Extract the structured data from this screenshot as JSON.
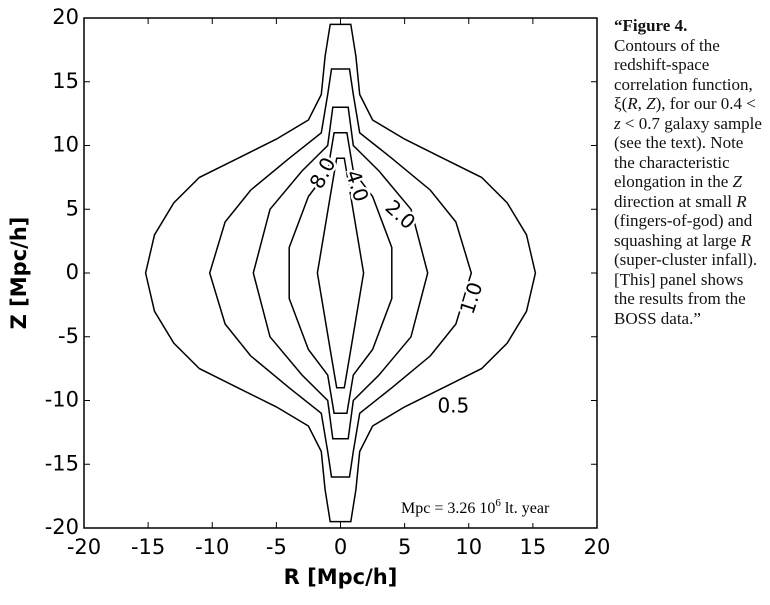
{
  "chart_data": {
    "type": "contour",
    "xlabel": "R  [Mpc/h]",
    "ylabel": "Z  [Mpc/h]",
    "xlim": [
      -20,
      20
    ],
    "ylim": [
      -20,
      20
    ],
    "xticks": [
      -20,
      -15,
      -10,
      -5,
      0,
      5,
      10,
      15,
      20
    ],
    "yticks": [
      -20,
      -15,
      -10,
      -5,
      0,
      5,
      10,
      15,
      20
    ],
    "color": "#000000",
    "contours": [
      {
        "level": {
          "value": 0.5,
          "label": "0.5"
        },
        "x": [
          0.8,
          1.2,
          1.5,
          2.5,
          5,
          8,
          11,
          13,
          14.5,
          15.2,
          14.5,
          13,
          11,
          8,
          5,
          2.5,
          1.5,
          1.2,
          0.8,
          -0.8,
          -1.2,
          -1.5,
          -2.5,
          -5,
          -8,
          -11,
          -13,
          -14.5,
          -15.2,
          -14.5,
          -13,
          -11,
          -8,
          -5,
          -2.5,
          -1.5,
          -1.2,
          -0.8
        ],
        "y": [
          19.5,
          17,
          14,
          12,
          10.5,
          9,
          7.5,
          5.5,
          3,
          0,
          -3,
          -5.5,
          -7.5,
          -9,
          -10.5,
          -12,
          -14,
          -17,
          -19.5,
          -19.5,
          -17,
          -14,
          -12,
          -10.5,
          -9,
          -7.5,
          -5.5,
          -3,
          0,
          3,
          5.5,
          7.5,
          9,
          10.5,
          12,
          14,
          17,
          19.5
        ]
      },
      {
        "level": {
          "value": 1,
          "label": "1.0"
        },
        "x": [
          0.7,
          1,
          1.5,
          4,
          7,
          9,
          10.2,
          9,
          7,
          4,
          1.5,
          1,
          0.7,
          -0.7,
          -1,
          -1.5,
          -4,
          -7,
          -9,
          -10.2,
          -9,
          -7,
          -4,
          -1.5,
          -1,
          -0.7
        ],
        "y": [
          16,
          14,
          11,
          9,
          6.5,
          4,
          0,
          -4,
          -6.5,
          -9,
          -11,
          -14,
          -16,
          -16,
          -14,
          -11,
          -9,
          -6.5,
          -4,
          0,
          4,
          6.5,
          9,
          11,
          14,
          16
        ]
      },
      {
        "level": {
          "value": 2,
          "label": "2.0"
        },
        "x": [
          0.6,
          1,
          3,
          5.5,
          6.8,
          5.5,
          3,
          1,
          0.6,
          -0.6,
          -1,
          -3,
          -5.5,
          -6.8,
          -5.5,
          -3,
          -1,
          -0.6
        ],
        "y": [
          13,
          10,
          8,
          5,
          0,
          -5,
          -8,
          -10,
          -13,
          -13,
          -10,
          -8,
          -5,
          0,
          5,
          8,
          10,
          13
        ]
      },
      {
        "level": {
          "value": 4,
          "label": "4.0"
        },
        "x": [
          0.5,
          1,
          2.5,
          4,
          4,
          2.5,
          1,
          0.5,
          -0.5,
          -1,
          -2.5,
          -4,
          -4,
          -2.5,
          -1,
          -0.5
        ],
        "y": [
          11,
          8,
          6,
          2,
          -2,
          -6,
          -8,
          -11,
          -11,
          -8,
          -6,
          -2,
          2,
          6,
          8,
          11
        ]
      },
      {
        "level": {
          "value": 8,
          "label": "8.0"
        },
        "x": [
          0.3,
          0.8,
          1.8,
          0.8,
          0.3,
          -0.3,
          -0.8,
          -1.8,
          -0.8,
          -0.3
        ],
        "y": [
          9,
          6,
          0,
          -6,
          -9,
          -9,
          -6,
          0,
          6,
          9
        ]
      }
    ],
    "annotation": [
      "Mpc = 3.26 10",
      "6",
      " lt. year"
    ]
  },
  "caption": [
    {
      "text": "“Figure 4.",
      "style": "bold"
    },
    {
      "text": "Contours of the redshift-space correlation function, ξ(",
      "style": "normal"
    },
    {
      "text": "R",
      "style": "italic"
    },
    {
      "text": ", ",
      "style": "normal"
    },
    {
      "text": "Z",
      "style": "italic"
    },
    {
      "text": "), for our 0.4 < ",
      "style": "normal"
    },
    {
      "text": "z",
      "style": "italic"
    },
    {
      "text": " < 0.7 galaxy sample (see the text). Note the characteristic elongation in the ",
      "style": "normal"
    },
    {
      "text": "Z",
      "style": "italic"
    },
    {
      "text": " direction at small ",
      "style": "normal"
    },
    {
      "text": "R",
      "style": "italic"
    },
    {
      "text": " (fingers-of-god) and squashing at large ",
      "style": "normal"
    },
    {
      "text": "R",
      "style": "italic"
    },
    {
      "text": " (super-cluster infall). [This] panel shows the results from the BOSS data.”",
      "style": "normal"
    }
  ]
}
